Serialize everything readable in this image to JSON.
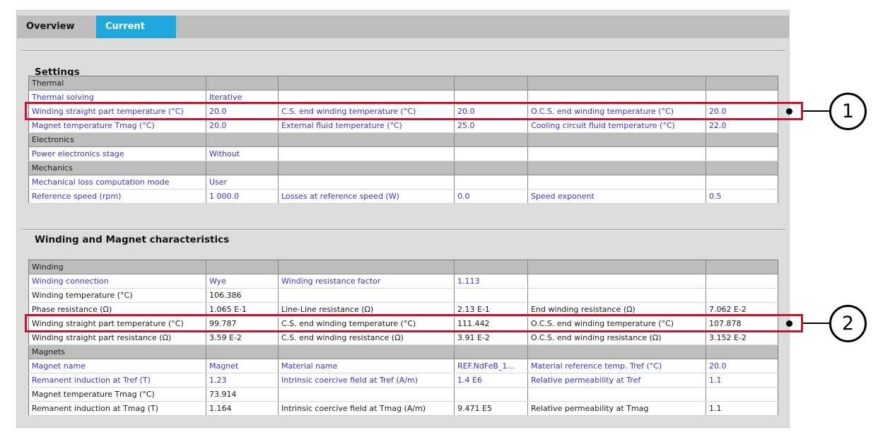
{
  "tabs": [
    {
      "label": "Overview",
      "active": false
    },
    {
      "label": "Current",
      "active": true
    }
  ],
  "sections": [
    {
      "title": "Settings",
      "rows": [
        {
          "type": "group",
          "label": "Thermal"
        },
        {
          "type": "data",
          "style": "input",
          "cells": [
            "Thermal solving",
            "Iterative",
            "",
            "",
            "",
            ""
          ]
        },
        {
          "type": "data",
          "style": "input",
          "highlight": true,
          "callout": "1",
          "cells": [
            "Winding straight part temperature (°C)",
            "20.0",
            "C.S. end winding temperature (°C)",
            "20.0",
            "O.C.S. end winding temperature (°C)",
            "20.0"
          ]
        },
        {
          "type": "data",
          "style": "input",
          "cells": [
            "Magnet temperature Tmag (°C)",
            "20.0",
            "External fluid temperature (°C)",
            "25.0",
            "Cooling circuit fluid temperature (°C)",
            "22.0"
          ]
        },
        {
          "type": "group",
          "label": "Electronics"
        },
        {
          "type": "data",
          "style": "input",
          "cells": [
            "Power electronics stage",
            "Without",
            "",
            "",
            "",
            ""
          ]
        },
        {
          "type": "group",
          "label": "Mechanics"
        },
        {
          "type": "data",
          "style": "input",
          "cells": [
            "Mechanical loss computation mode",
            "User",
            "",
            "",
            "",
            ""
          ]
        },
        {
          "type": "data",
          "style": "input",
          "cells": [
            "Reference speed (rpm)",
            "1 000.0",
            "Losses at reference speed (W)",
            "0.0",
            "Speed exponent",
            "0.5"
          ]
        }
      ]
    },
    {
      "title": "Winding and Magnet characteristics",
      "rows": [
        {
          "type": "group",
          "label": "Winding"
        },
        {
          "type": "data",
          "style": "input",
          "cells": [
            "Winding connection",
            "Wye",
            "Winding resistance factor",
            "1.113",
            "",
            ""
          ]
        },
        {
          "type": "data",
          "style": "computed",
          "cells": [
            "Winding temperature (°C)",
            "106.386",
            "",
            "",
            "",
            ""
          ]
        },
        {
          "type": "data",
          "style": "computed",
          "cells": [
            "Phase resistance (Ω)",
            "1.065 E-1",
            "Line-Line resistance (Ω)",
            "2.13 E-1",
            "End winding resistance (Ω)",
            "7.062 E-2"
          ]
        },
        {
          "type": "data",
          "style": "computed",
          "highlight": true,
          "callout": "2",
          "cells": [
            "Winding straight part temperature (°C)",
            "99.787",
            "C.S. end winding temperature (°C)",
            "111.442",
            "O.C.S. end winding temperature (°C)",
            "107.878"
          ]
        },
        {
          "type": "data",
          "style": "computed",
          "cells": [
            "Winding straight part resistance (Ω)",
            "3.59 E-2",
            "C.S. end winding resistance (Ω)",
            "3.91 E-2",
            "O.C.S. end winding resistance (Ω)",
            "3.152 E-2"
          ]
        },
        {
          "type": "group",
          "label": "Magnets"
        },
        {
          "type": "data",
          "style": "input",
          "cells": [
            "Magnet name",
            "Magnet",
            "Material name",
            "REF.NdFeB_1...",
            "Material reference temp. Tref (°C)",
            "20.0"
          ]
        },
        {
          "type": "data",
          "style": "input",
          "cells": [
            "Remanent induction at Tref (T)",
            "1.23",
            "Intrinsic coercive field at Tref (A/m)",
            "1.4 E6",
            "Relative permeability at Tref",
            "1.1"
          ]
        },
        {
          "type": "data",
          "style": "computed",
          "cells": [
            "Magnet temperature Tmag (°C)",
            "73.914",
            "",
            "",
            "",
            ""
          ]
        },
        {
          "type": "data",
          "style": "computed",
          "cells": [
            "Remanent induction at Tmag (T)",
            "1.164",
            "Intrinsic coercive field at Tmag (A/m)",
            "9.471 E5",
            "Relative permeability at Tmag",
            "1.1"
          ]
        }
      ]
    }
  ],
  "callouts": [
    {
      "number": "1"
    },
    {
      "number": "2"
    }
  ],
  "colors": {
    "accent_tab": "#1fa8dc",
    "highlight_red": "#c81332",
    "input_text": "#3434cd",
    "computed_text": "#1a1a1a",
    "group_row_bg": "#bdbdbd",
    "panel_bg": "#dcdcdc"
  }
}
